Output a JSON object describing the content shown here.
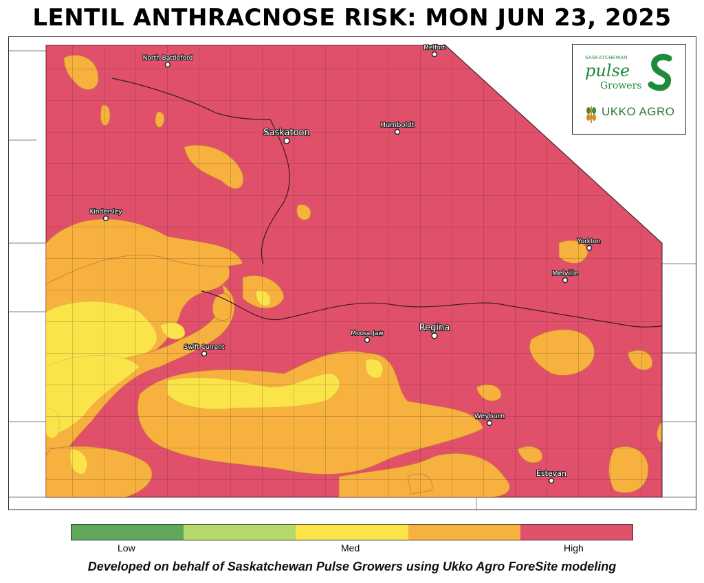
{
  "title": "LENTIL ANTHRACNOSE RISK: MON JUN 23, 2025",
  "cities": [
    {
      "name": "North Battleford"
    },
    {
      "name": "Melfort"
    },
    {
      "name": "Saskatoon"
    },
    {
      "name": "Humboldt"
    },
    {
      "name": "Kindersley"
    },
    {
      "name": "Yorkton"
    },
    {
      "name": "Melville"
    },
    {
      "name": "Regina"
    },
    {
      "name": "Moose Jaw"
    },
    {
      "name": "Swift Current"
    },
    {
      "name": "Weyburn"
    },
    {
      "name": "Estevan"
    }
  ],
  "logos": {
    "spg_small": "SASKATCHEWAN",
    "spg_main": "pulse",
    "spg_sub": "Growers",
    "ukko": "UKKO AGRO"
  },
  "legend": {
    "colors": [
      "#5fa85a",
      "#b5d96a",
      "#fbe44a",
      "#f6b13f",
      "#e0506a"
    ],
    "low": "Low",
    "med": "Med",
    "high": "High"
  },
  "footer": "Developed on behalf of Saskatchewan Pulse Growers using Ukko Agro ForeSite modeling"
}
